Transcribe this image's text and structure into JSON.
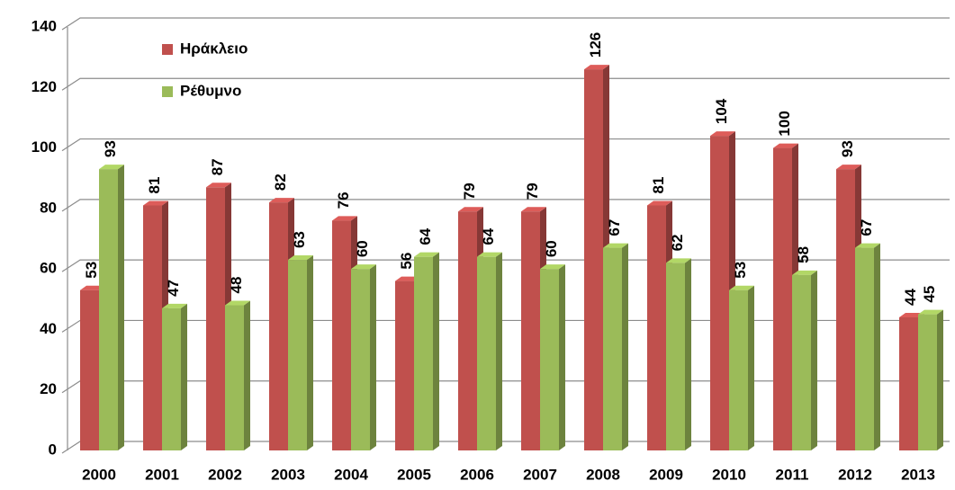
{
  "chart_data": {
    "type": "bar3d",
    "categories": [
      "2000",
      "2001",
      "2002",
      "2003",
      "2004",
      "2005",
      "2006",
      "2007",
      "2008",
      "2009",
      "2010",
      "2011",
      "2012",
      "2013"
    ],
    "series": [
      {
        "name": "Ηράκλειο",
        "color": "#c0504d",
        "values": [
          53,
          81,
          87,
          82,
          76,
          56,
          79,
          79,
          126,
          81,
          104,
          100,
          93,
          44
        ]
      },
      {
        "name": "Ρέθυμνο",
        "color": "#9bbb59",
        "values": [
          93,
          47,
          48,
          63,
          60,
          64,
          64,
          60,
          67,
          62,
          53,
          58,
          67,
          45
        ]
      }
    ],
    "ylim": [
      0,
      140
    ],
    "yticks": [
      0,
      20,
      40,
      60,
      80,
      100,
      120,
      140
    ],
    "grid": true,
    "legend": "top-left"
  }
}
